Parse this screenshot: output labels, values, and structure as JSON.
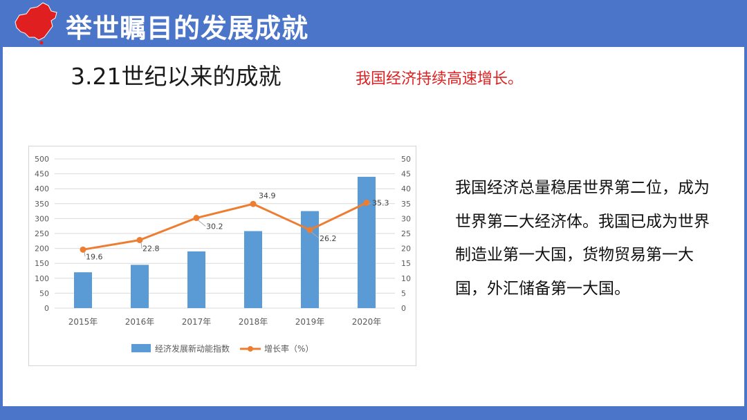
{
  "header": {
    "title": "举世瞩目的发展成就",
    "logo_icon": "china-map-icon",
    "accent_color": "#4a75c8"
  },
  "subtitle": "3.21世纪以来的成就",
  "highlight": {
    "text": "我国经济持续高速增长。",
    "color": "#e02020"
  },
  "description": "我国经济总量稳居世界第二位，成为世界第二大经济体。我国已成为世界制造业第一大国，货物贸易第一大国，外汇储备第一大国。",
  "chart_data": {
    "type": "bar",
    "categories": [
      "2015年",
      "2016年",
      "2017年",
      "2018年",
      "2019年",
      "2020年"
    ],
    "series": [
      {
        "name": "经济发展新动能指数",
        "type": "bar",
        "axis": "left",
        "color": "#5b9bd5",
        "values": [
          120,
          145,
          190,
          258,
          325,
          440
        ]
      },
      {
        "name": "增长率（%）",
        "type": "line",
        "axis": "right",
        "color": "#ed7d31",
        "values": [
          19.6,
          22.8,
          30.2,
          34.9,
          26.2,
          35.3
        ],
        "labels": [
          "19.6",
          "22.8",
          "30.2",
          "34.9",
          "26.2",
          "35.3"
        ]
      }
    ],
    "ylim_left": [
      0,
      500
    ],
    "ylim_right": [
      0,
      50
    ],
    "yticks_left": [
      "0",
      "50",
      "100",
      "150",
      "200",
      "250",
      "300",
      "350",
      "400",
      "450",
      "500"
    ],
    "yticks_right": [
      "0",
      "5",
      "10",
      "15",
      "20",
      "25",
      "30",
      "35",
      "40",
      "45",
      "50"
    ],
    "grid": true,
    "legend_position": "bottom"
  }
}
